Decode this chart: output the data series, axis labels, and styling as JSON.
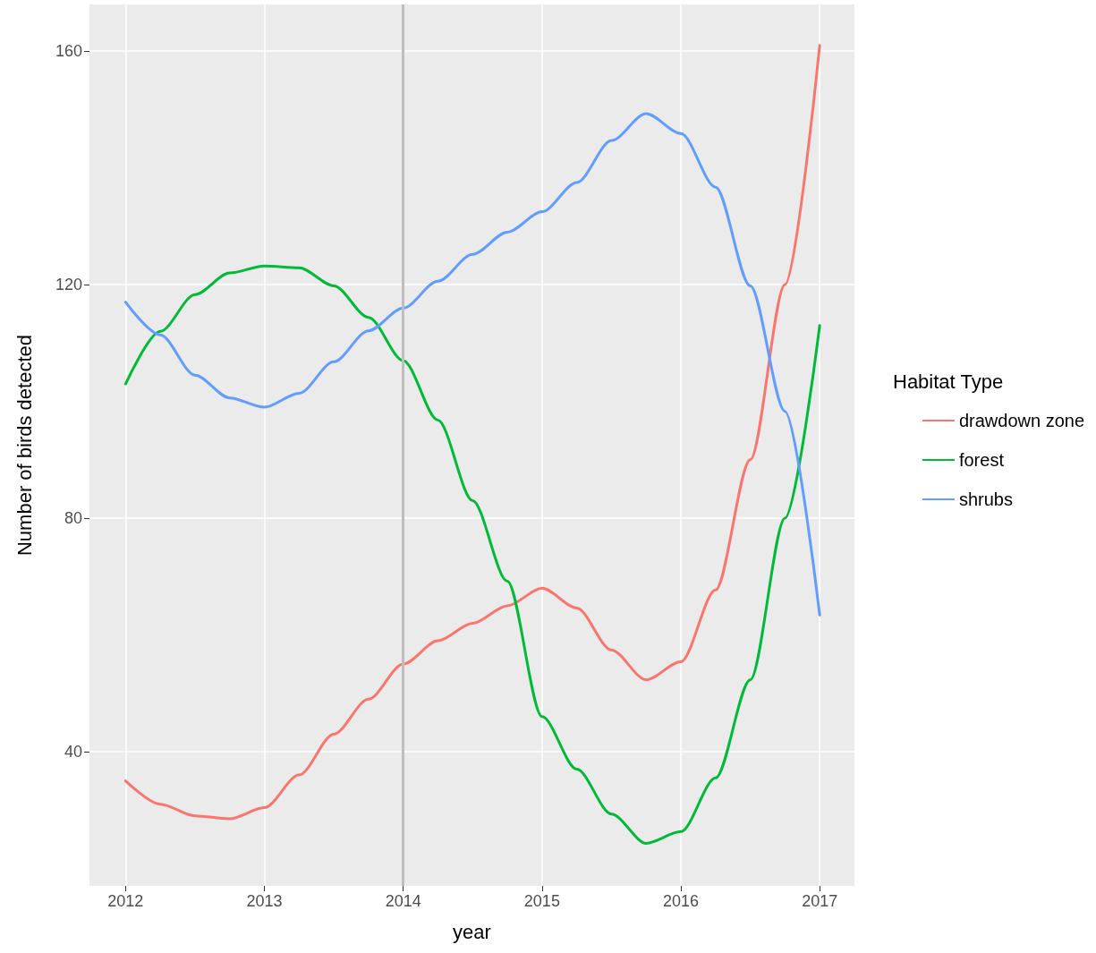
{
  "chart_data": {
    "type": "line",
    "xlabel": "year",
    "ylabel": "Number of birds detected",
    "legend_title": "Habitat Type",
    "legend": "right",
    "grid": true,
    "marker": "none",
    "line_style": "solid",
    "x": [
      2012,
      2012.25,
      2012.5,
      2012.75,
      2013,
      2013.25,
      2013.5,
      2013.75,
      2014,
      2014.25,
      2014.5,
      2014.75,
      2015,
      2015.25,
      2015.5,
      2015.75,
      2016,
      2016.25,
      2016.5,
      2016.75,
      2017
    ],
    "xlim": [
      2011.74,
      2017.25
    ],
    "xticks": [
      2012,
      2013,
      2014,
      2015,
      2016,
      2017
    ],
    "ylim": [
      17,
      168
    ],
    "yticks": [
      40,
      80,
      120,
      160
    ],
    "series": [
      {
        "name": "drawdown zone",
        "color": "#f8766d",
        "values": [
          35,
          31,
          29,
          28.5,
          30.4,
          36,
          43,
          49,
          55,
          59,
          62,
          65,
          68,
          64.6,
          57.4,
          52.3,
          55.4,
          67.7,
          90,
          120,
          161
        ]
      },
      {
        "name": "forest",
        "color": "#00ba38",
        "values": [
          103,
          112,
          118.3,
          122,
          123.2,
          122.9,
          119.8,
          114.4,
          107,
          96.8,
          83,
          69.2,
          46,
          37,
          29.3,
          24.3,
          26.3,
          35.5,
          52.3,
          80,
          113
        ]
      },
      {
        "name": "shrubs",
        "color": "#619cff",
        "values": [
          117,
          111.4,
          104.5,
          100.6,
          99,
          101.4,
          106.8,
          112.1,
          116,
          120.6,
          125.2,
          129,
          132.5,
          137.5,
          144.7,
          149.3,
          145.9,
          136.7,
          119.8,
          98.3,
          63.4
        ]
      }
    ],
    "ref_lines": [
      {
        "axis": "x",
        "value": 2014,
        "color": "#bebebe"
      }
    ]
  }
}
